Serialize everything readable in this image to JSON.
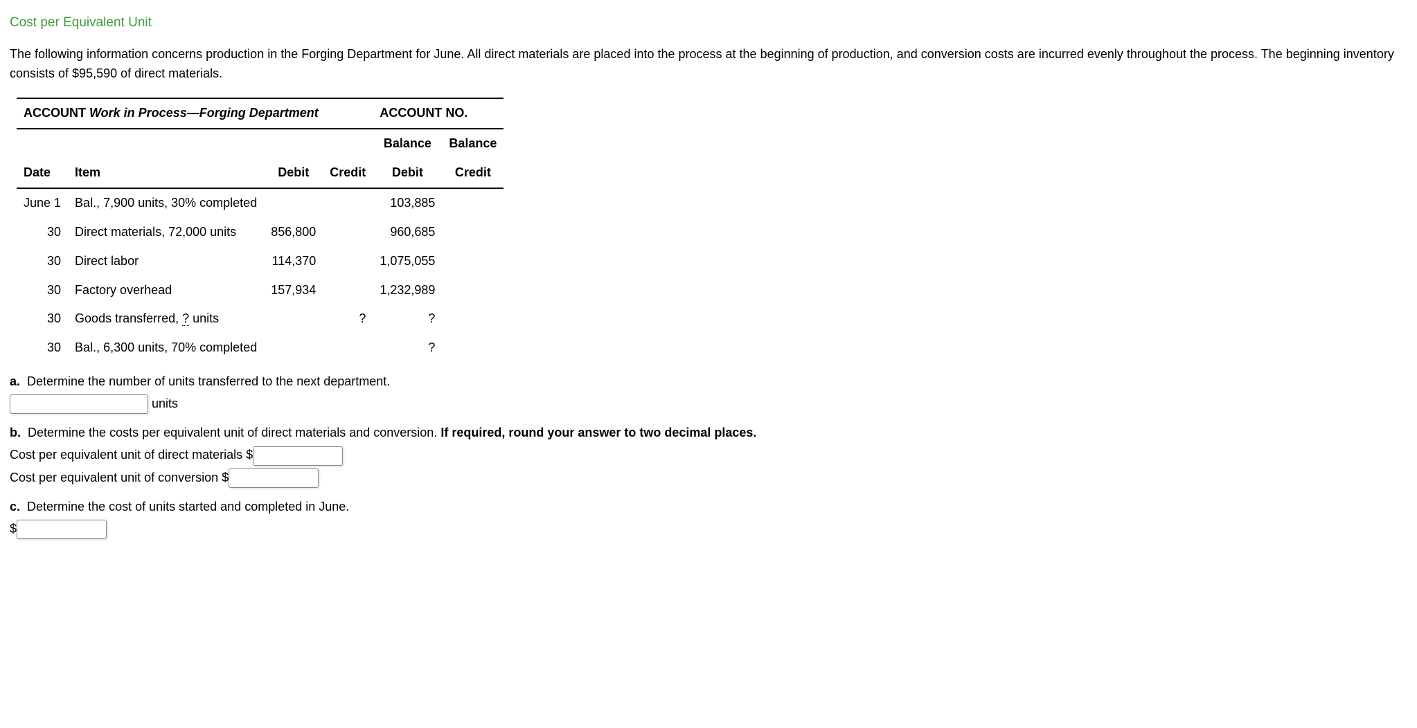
{
  "title": "Cost per Equivalent Unit",
  "description": "The following information concerns production in the Forging Department for June. All direct materials are placed into the process at the beginning of the process. The beginning inventory consists of $95,590 of direct materials.",
  "desc_part1": "The following information concerns production in the Forging Department for June. All direct materials are placed into the process at the beginning of production, and conversion costs are incurred evenly throughout the process. The beginning inventory consists of $95,590 of direct materials.",
  "account": {
    "label_prefix": "ACCOUNT ",
    "name": "Work in Process—Forging Department",
    "no_label": "ACCOUNT NO.",
    "col_date": "Date",
    "col_item": "Item",
    "col_debit": "Debit",
    "col_credit": "Credit",
    "col_bal": "Balance",
    "col_bal_debit": "Debit",
    "col_bal_credit": "Credit",
    "rows": [
      {
        "date": "June 1",
        "item": "Bal., 7,900 units, 30% completed",
        "debit": "",
        "credit": "",
        "bal_debit": "103,885",
        "bal_credit": ""
      },
      {
        "date": "30",
        "item": "Direct materials, 72,000 units",
        "debit": "856,800",
        "credit": "",
        "bal_debit": "960,685",
        "bal_credit": ""
      },
      {
        "date": "30",
        "item": "Direct labor",
        "debit": "114,370",
        "credit": "",
        "bal_debit": "1,075,055",
        "bal_credit": ""
      },
      {
        "date": "30",
        "item": "Factory overhead",
        "debit": "157,934",
        "credit": "",
        "bal_debit": "1,232,989",
        "bal_credit": ""
      },
      {
        "date": "30",
        "item_prefix": "Goods transferred, ",
        "item_underlined": "?",
        "item_suffix": " units",
        "debit": "",
        "credit": "?",
        "bal_debit": "?",
        "bal_credit": ""
      },
      {
        "date": "30",
        "item": "Bal., 6,300 units, 70% completed",
        "debit": "",
        "credit": "",
        "bal_debit": "?",
        "bal_credit": ""
      }
    ]
  },
  "qa": {
    "label": "a.",
    "text": "Determine the number of units transferred to the next department.",
    "suffix": "units"
  },
  "qb": {
    "label": "b.",
    "text": "Determine the costs per equivalent unit of direct materials and conversion. ",
    "bold": "If required, round your answer to two decimal places.",
    "line1": "Cost per equivalent unit of direct materials $",
    "line2": "Cost per equivalent unit of conversion $"
  },
  "qc": {
    "label": "c.",
    "text": "Determine the cost of units started and completed in June.",
    "prefix": "$"
  }
}
